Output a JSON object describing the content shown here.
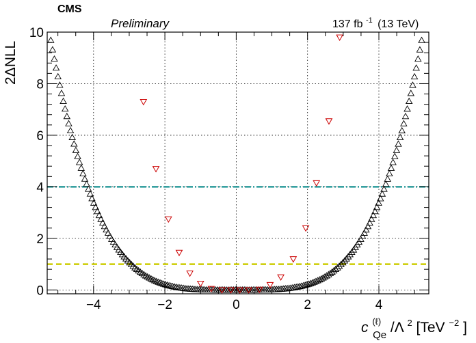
{
  "header": {
    "experiment": "CMS",
    "status": "Preliminary",
    "luminosity": "137 fb",
    "lumi_exponent": "-1",
    "energy": "(13 TeV)"
  },
  "axes": {
    "ylabel": "2ΔNLL",
    "xlabel_c": "c",
    "xlabel_sup": "(ℓ)",
    "xlabel_sub": "Qe",
    "xlabel_rest": "/Λ",
    "xlabel_sq": "2",
    "xlabel_unit": "[TeV",
    "xlabel_unit_exp": "−2",
    "xlabel_close": "]"
  },
  "chart_data": {
    "type": "scatter",
    "xlim": [
      -5.3,
      5.4
    ],
    "ylim": [
      -0.15,
      10.0
    ],
    "xticks": [
      -4,
      -2,
      0,
      2,
      4
    ],
    "xtick_labels": [
      "−4",
      "−2",
      "0",
      "2",
      "4"
    ],
    "yticks": [
      0,
      2,
      4,
      6,
      8,
      10
    ],
    "ytick_labels": [
      "0",
      "2",
      "4",
      "6",
      "8",
      "10"
    ],
    "grid": true,
    "reference_lines": [
      {
        "y": 4,
        "color": "#2a9a9a",
        "style": "dash-dot"
      },
      {
        "y": 1,
        "color": "#cccc00",
        "style": "dashed"
      }
    ],
    "series": [
      {
        "marker": "triangle-up",
        "color": "#000000",
        "curve": "quartic",
        "coefficient": 0.01325,
        "x_range": [
          -5.3,
          5.35
        ],
        "n_points": 213
      },
      {
        "marker": "triangle-down",
        "color": "#cc0000",
        "x": [
          -2.6,
          -2.25,
          -1.9,
          -1.6,
          -1.3,
          -1.0,
          -0.7,
          -0.4,
          -0.15,
          0.1,
          0.35,
          0.65,
          0.95,
          1.25,
          1.6,
          1.95,
          2.25,
          2.6,
          2.9
        ],
        "y": [
          7.3,
          4.7,
          2.75,
          1.45,
          0.65,
          0.25,
          0.05,
          0.0,
          0.0,
          0.0,
          0.0,
          0.02,
          0.2,
          0.5,
          1.2,
          2.4,
          4.15,
          6.55,
          9.8
        ]
      }
    ]
  }
}
